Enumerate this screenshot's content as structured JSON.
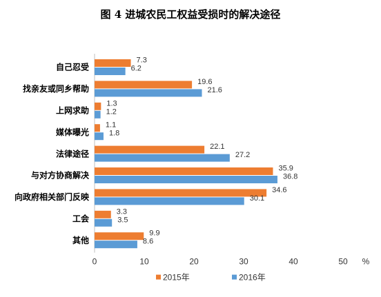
{
  "chart_data": {
    "type": "bar",
    "orientation": "horizontal",
    "title": "图 4 进城农民工权益受损时的解决途径",
    "unit": "%",
    "categories": [
      "自己忍受",
      "找亲友或同乡帮助",
      "上网求助",
      "媒体曝光",
      "法律途径",
      "与对方协商解决",
      "向政府相关部门反映",
      "工会",
      "其他"
    ],
    "series": [
      {
        "name": "2015年",
        "color": "#ED7D31",
        "values": [
          7.3,
          19.6,
          1.3,
          1.1,
          22.1,
          35.9,
          34.6,
          3.3,
          9.9
        ]
      },
      {
        "name": "2016年",
        "color": "#5B9BD5",
        "values": [
          6.2,
          21.6,
          1.2,
          1.8,
          27.2,
          36.8,
          30.1,
          3.5,
          8.6
        ]
      }
    ],
    "xlim": [
      0,
      50
    ],
    "xticks": [
      0,
      10,
      20,
      30,
      40,
      50
    ],
    "grid": false,
    "legend_position": "bottom"
  }
}
